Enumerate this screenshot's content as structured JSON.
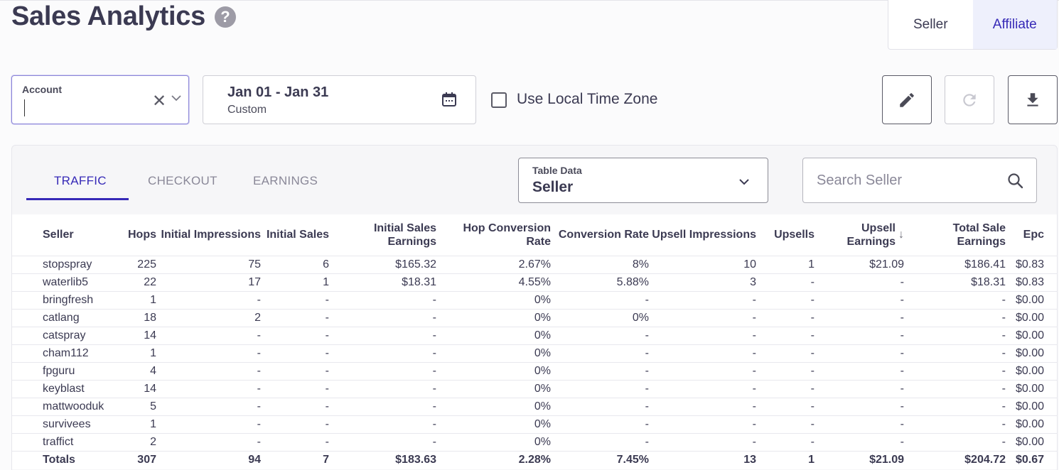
{
  "header": {
    "title": "Sales Analytics",
    "help_glyph": "?",
    "roles": [
      "Seller",
      "Affiliate"
    ],
    "active_role": "Affiliate"
  },
  "filters": {
    "account_label": "Account",
    "account_value": "",
    "date_range": "Jan 01 - Jan 31",
    "date_preset": "Custom",
    "local_tz_label": "Use Local Time Zone",
    "local_tz_checked": false
  },
  "tabs": [
    "TRAFFIC",
    "CHECKOUT",
    "EARNINGS"
  ],
  "active_tab": "TRAFFIC",
  "table_data": {
    "label": "Table Data",
    "value": "Seller"
  },
  "search": {
    "placeholder": "Search Seller"
  },
  "table": {
    "columns": [
      "Seller",
      "Hops",
      "Initial Impressions",
      "Initial Sales",
      "Initial Sales Earnings",
      "Hop Conversion Rate",
      "Conversion Rate",
      "Upsell Impressions",
      "Upsells",
      "Upsell Earnings",
      "Total Sale Earnings",
      "Epc"
    ],
    "sorted_column": "Upsell Earnings",
    "sort_direction": "descending",
    "rows": [
      [
        "stopspray",
        "225",
        "75",
        "6",
        "$165.32",
        "2.67%",
        "8%",
        "10",
        "1",
        "$21.09",
        "$186.41",
        "$0.83"
      ],
      [
        "waterlib5",
        "22",
        "17",
        "1",
        "$18.31",
        "4.55%",
        "5.88%",
        "3",
        "-",
        "-",
        "$18.31",
        "$0.83"
      ],
      [
        "bringfresh",
        "1",
        "-",
        "-",
        "-",
        "0%",
        "-",
        "-",
        "-",
        "-",
        "-",
        "$0.00"
      ],
      [
        "catlang",
        "18",
        "2",
        "-",
        "-",
        "0%",
        "0%",
        "-",
        "-",
        "-",
        "-",
        "$0.00"
      ],
      [
        "catspray",
        "14",
        "-",
        "-",
        "-",
        "0%",
        "-",
        "-",
        "-",
        "-",
        "-",
        "$0.00"
      ],
      [
        "cham112",
        "1",
        "-",
        "-",
        "-",
        "0%",
        "-",
        "-",
        "-",
        "-",
        "-",
        "$0.00"
      ],
      [
        "fpguru",
        "4",
        "-",
        "-",
        "-",
        "0%",
        "-",
        "-",
        "-",
        "-",
        "-",
        "$0.00"
      ],
      [
        "keyblast",
        "14",
        "-",
        "-",
        "-",
        "0%",
        "-",
        "-",
        "-",
        "-",
        "-",
        "$0.00"
      ],
      [
        "mattwooduk",
        "5",
        "-",
        "-",
        "-",
        "0%",
        "-",
        "-",
        "-",
        "-",
        "-",
        "$0.00"
      ],
      [
        "survivees",
        "1",
        "-",
        "-",
        "-",
        "0%",
        "-",
        "-",
        "-",
        "-",
        "-",
        "$0.00"
      ],
      [
        "traffict",
        "2",
        "-",
        "-",
        "-",
        "0%",
        "-",
        "-",
        "-",
        "-",
        "-",
        "$0.00"
      ]
    ],
    "totals": [
      "Totals",
      "307",
      "94",
      "7",
      "$183.63",
      "2.28%",
      "7.45%",
      "13",
      "1",
      "$21.09",
      "$204.72",
      "$0.67"
    ]
  },
  "icons": {
    "help": "help-icon",
    "clear": "close-icon",
    "calendar": "calendar-icon",
    "edit": "pencil-icon",
    "refresh": "refresh-icon",
    "download": "download-icon",
    "search": "search-icon"
  },
  "colors": {
    "accent": "#3629b7",
    "active_bg": "#eef0fc",
    "text": "#3b3a52"
  }
}
